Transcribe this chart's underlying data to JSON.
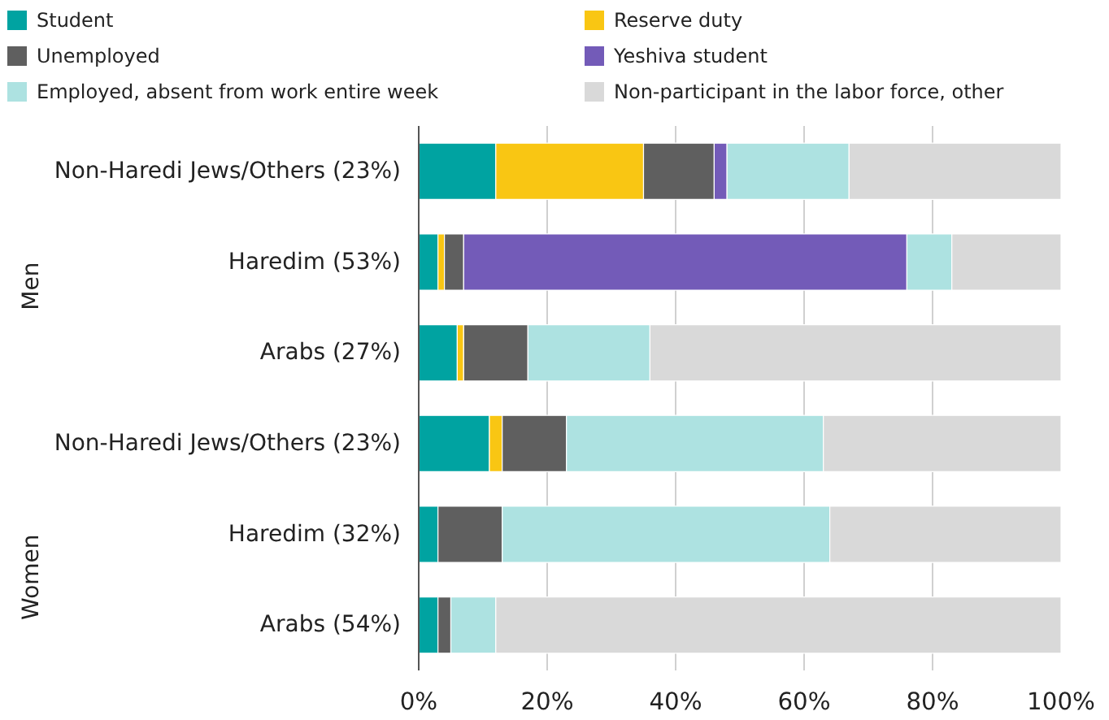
{
  "chart_data": {
    "type": "bar",
    "orientation": "horizontal",
    "stacked": true,
    "categories": [
      "Non-Haredi Jews/Others (23%)",
      "Haredim (53%)",
      "Arabs (27%)",
      "Non-Haredi Jews/Others (23%)",
      "Haredim (32%)",
      "Arabs (54%)"
    ],
    "annotations": [
      "Men",
      "Women"
    ],
    "series": [
      {
        "name": "Student",
        "color": "#00a3a1",
        "values": [
          12,
          3,
          6,
          11,
          3,
          3
        ]
      },
      {
        "name": "Reserve duty",
        "color": "#f9c613",
        "values": [
          23,
          1,
          1,
          2,
          0,
          0
        ]
      },
      {
        "name": "Unemployed",
        "color": "#5f5f5f",
        "values": [
          11,
          3,
          10,
          10,
          10,
          2
        ]
      },
      {
        "name": "Yeshiva student",
        "color": "#735bb8",
        "values": [
          2,
          69,
          0,
          0,
          0,
          0
        ]
      },
      {
        "name": "Employed, absent from work entire week",
        "color": "#ade2e1",
        "values": [
          19,
          7,
          19,
          40,
          51,
          7
        ]
      },
      {
        "name": "Non-participant in the labor force, other",
        "color": "#d9d9d9",
        "values": [
          33,
          17,
          64,
          37,
          36,
          88
        ]
      }
    ],
    "xlim": [
      0,
      100
    ],
    "xticks": [
      {
        "value": 0,
        "label": "0%"
      },
      {
        "value": 20,
        "label": "20%"
      },
      {
        "value": 40,
        "label": "40%"
      },
      {
        "value": 60,
        "label": "60%"
      },
      {
        "value": 80,
        "label": "80%"
      },
      {
        "value": 100,
        "label": "100%"
      }
    ],
    "grid": "x",
    "legend": "top"
  }
}
